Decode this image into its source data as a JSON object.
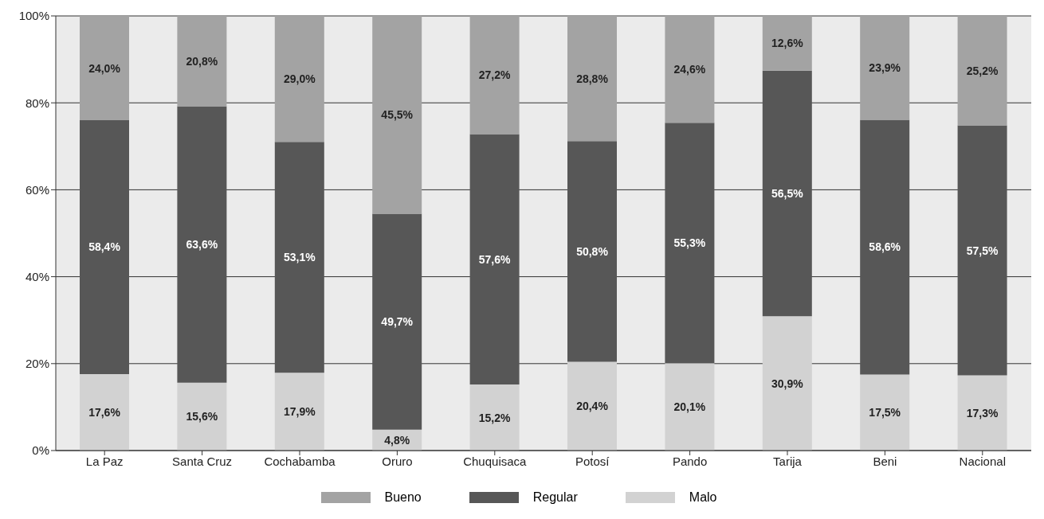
{
  "chart_data": {
    "type": "bar",
    "stacked": true,
    "categories": [
      "La Paz",
      "Santa Cruz",
      "Cochabamba",
      "Oruro",
      "Chuquisaca",
      "Potosí",
      "Pando",
      "Tarija",
      "Beni",
      "Nacional"
    ],
    "series": [
      {
        "name": "Malo",
        "color": "#d2d2d2",
        "values": [
          17.6,
          15.6,
          17.9,
          4.8,
          15.2,
          20.4,
          20.1,
          30.9,
          17.5,
          17.3
        ],
        "value_labels": [
          "17,6%",
          "15,6%",
          "17,9%",
          "4,8%",
          "15,2%",
          "20,4%",
          "20,1%",
          "30,9%",
          "17,5%",
          "17,3%"
        ]
      },
      {
        "name": "Regular",
        "color": "#575757",
        "values": [
          58.4,
          63.6,
          53.1,
          49.7,
          57.6,
          50.8,
          55.3,
          56.5,
          58.6,
          57.5
        ],
        "value_labels": [
          "58,4%",
          "63,6%",
          "53,1%",
          "49,7%",
          "57,6%",
          "50,8%",
          "55,3%",
          "56,5%",
          "58,6%",
          "57,5%"
        ]
      },
      {
        "name": "Bueno",
        "color": "#a3a3a3",
        "values": [
          24.0,
          20.8,
          29.0,
          45.5,
          27.2,
          28.8,
          24.6,
          12.6,
          23.9,
          25.2
        ],
        "value_labels": [
          "24,0%",
          "20,8%",
          "29,0%",
          "45,5%",
          "27,2%",
          "28,8%",
          "24,6%",
          "12,6%",
          "23,9%",
          "25,2%"
        ]
      }
    ],
    "ylim": [
      0,
      100
    ],
    "yticks": [
      {
        "value": 0,
        "label": "0%"
      },
      {
        "value": 20,
        "label": "20%"
      },
      {
        "value": 40,
        "label": "40%"
      },
      {
        "value": 60,
        "label": "60%"
      },
      {
        "value": 80,
        "label": "80%"
      },
      {
        "value": 100,
        "label": "100%"
      }
    ],
    "grid": "y",
    "legend": "bottom"
  }
}
